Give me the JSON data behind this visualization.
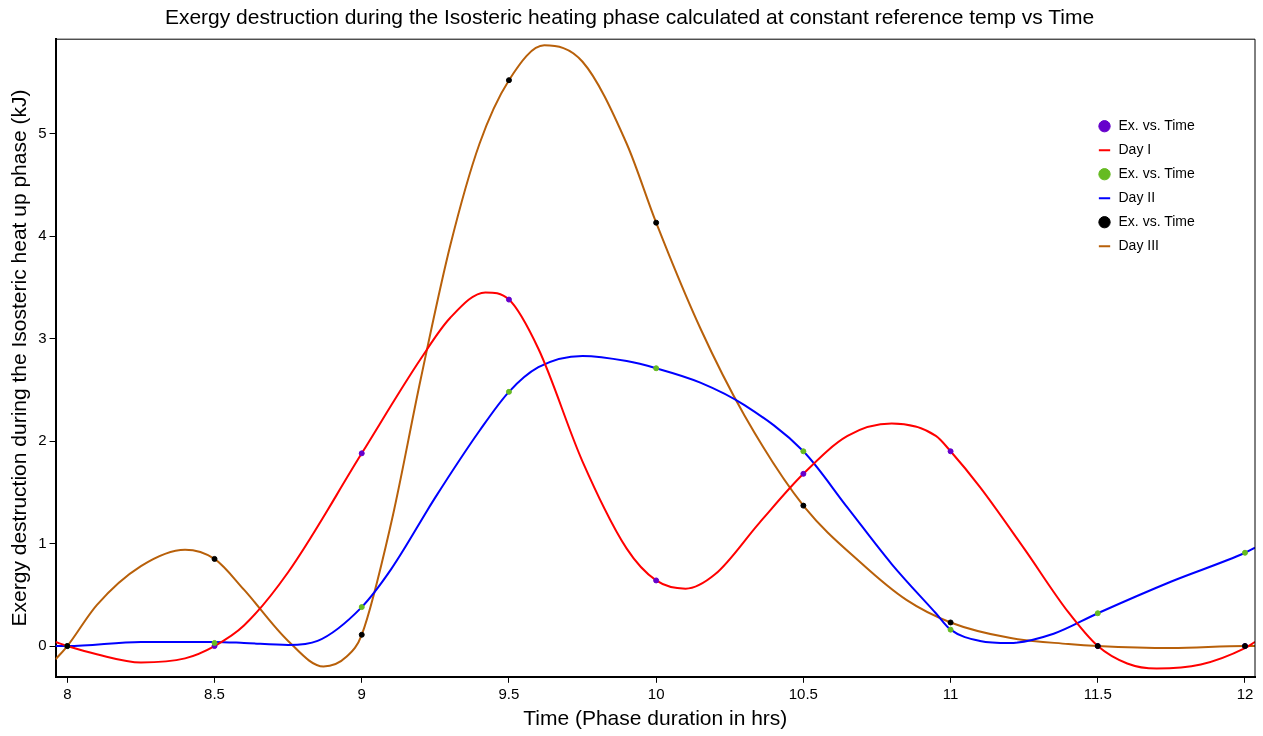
{
  "chart_data": {
    "type": "scatter",
    "title": "Exergy destruction during the Isosteric heating phase calculated at constant reference temp vs Time",
    "xlabel": "Time (Phase duration in hrs)",
    "ylabel": "Exergy destruction during the Isosteric heat up phase (kJ)",
    "xlim": [
      7.96,
      12.034
    ],
    "xticks": [
      8,
      8.5,
      9,
      9.5,
      10,
      10.5,
      11,
      11.5,
      12
    ],
    "ylim": [
      -0.3,
      5.92
    ],
    "yticks": [
      0,
      1,
      2,
      3,
      4,
      5
    ],
    "grid": false,
    "legend": "top right",
    "series": [
      {
        "name": "Ex. vs. Time",
        "type": "scatter",
        "marker": "circle",
        "color": "#6600cc",
        "x": [
          8,
          8.5,
          9,
          9.5,
          10,
          10.5,
          11,
          11.5,
          12
        ],
        "values": [
          0,
          0,
          1.88,
          3.38,
          0.64,
          1.68,
          1.9,
          0,
          0
        ]
      },
      {
        "name": "Day I",
        "type": "line",
        "marker": "none",
        "color": "#ff0000",
        "x": [
          7.96,
          8,
          8.1,
          8.25,
          8.4,
          8.5,
          8.6,
          8.75,
          9,
          9.2,
          9.3,
          9.42,
          9.5,
          9.6,
          9.75,
          9.9,
          10,
          10.1,
          10.2,
          10.35,
          10.5,
          10.65,
          10.8,
          10.95,
          11,
          11.1,
          11.25,
          11.4,
          11.5,
          11.6,
          11.7,
          11.85,
          12,
          12.034
        ],
        "values": [
          0.04,
          0,
          -0.08,
          -0.16,
          -0.12,
          0,
          0.2,
          0.72,
          1.88,
          2.8,
          3.2,
          3.45,
          3.38,
          2.9,
          1.8,
          0.95,
          0.64,
          0.56,
          0.7,
          1.2,
          1.68,
          2.05,
          2.17,
          2.05,
          1.9,
          1.55,
          0.95,
          0.33,
          0,
          -0.17,
          -0.22,
          -0.18,
          -0.02,
          0.04
        ]
      },
      {
        "name": "Ex. vs. Time",
        "type": "scatter",
        "marker": "circle",
        "color": "#66bb22",
        "x": [
          8,
          8.5,
          9,
          9.5,
          10,
          10.5,
          11,
          11.5,
          12
        ],
        "values": [
          0,
          0.03,
          0.38,
          2.48,
          2.71,
          1.9,
          0.16,
          0.32,
          0.91
        ]
      },
      {
        "name": "Day II",
        "type": "line",
        "marker": "none",
        "color": "#0000ff",
        "x": [
          7.96,
          8,
          8.25,
          8.5,
          8.6,
          8.75,
          8.85,
          9,
          9.1,
          9.25,
          9.4,
          9.5,
          9.6,
          9.75,
          9.9,
          10,
          10.15,
          10.3,
          10.5,
          10.65,
          10.8,
          10.95,
          11,
          11.1,
          11.2,
          11.35,
          11.5,
          11.75,
          12,
          12.034
        ],
        "values": [
          0,
          0,
          0.04,
          0.04,
          0.03,
          0.01,
          0.05,
          0.38,
          0.75,
          1.45,
          2.1,
          2.48,
          2.72,
          2.83,
          2.78,
          2.71,
          2.57,
          2.35,
          1.9,
          1.35,
          0.8,
          0.32,
          0.16,
          0.05,
          0.03,
          0.12,
          0.32,
          0.63,
          0.91,
          0.96
        ]
      },
      {
        "name": "Ex. vs. Time",
        "type": "scatter",
        "marker": "circle",
        "color": "#000000",
        "x": [
          8,
          8.5,
          9,
          9.5,
          10,
          10.5,
          11,
          11.5,
          12
        ],
        "values": [
          0,
          0.85,
          0.11,
          5.52,
          4.13,
          1.37,
          0.23,
          0,
          0
        ]
      },
      {
        "name": "Day III",
        "type": "line",
        "marker": "none",
        "color": "#b8600a",
        "x": [
          7.96,
          8,
          8.1,
          8.25,
          8.4,
          8.5,
          8.6,
          8.75,
          8.87,
          8.95,
          9,
          9.1,
          9.2,
          9.3,
          9.4,
          9.5,
          9.62,
          9.75,
          9.9,
          10,
          10.15,
          10.3,
          10.5,
          10.7,
          10.85,
          11,
          11.2,
          11.4,
          11.5,
          11.75,
          12,
          12.034
        ],
        "values": [
          -0.13,
          0,
          0.4,
          0.78,
          0.94,
          0.85,
          0.55,
          0.05,
          -0.2,
          -0.1,
          0.11,
          1.2,
          2.6,
          3.9,
          4.9,
          5.52,
          5.86,
          5.7,
          4.9,
          4.13,
          3.1,
          2.25,
          1.37,
          0.8,
          0.45,
          0.23,
          0.08,
          0.02,
          0,
          -0.02,
          0,
          0
        ]
      }
    ]
  }
}
